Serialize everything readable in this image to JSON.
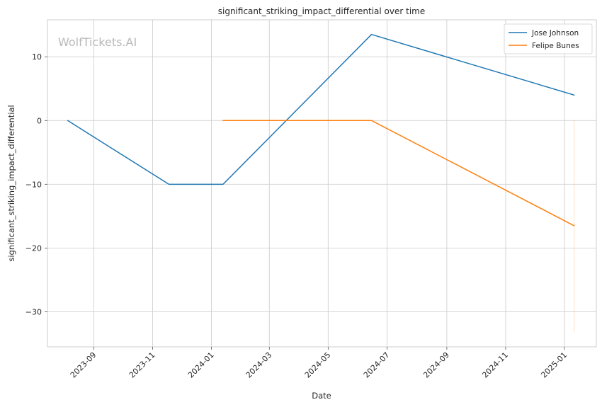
{
  "watermark": "WolfTickets.AI",
  "chart_data": {
    "type": "line",
    "title": "significant_striking_impact_differential over time",
    "xlabel": "Date",
    "ylabel": "significant_striking_impact_differential",
    "x_range": [
      "2023-07-15",
      "2025-02-03"
    ],
    "ylim": [
      -35.5,
      15.8
    ],
    "x_ticks": [
      "2023-09",
      "2023-11",
      "2024-01",
      "2024-03",
      "2024-05",
      "2024-07",
      "2024-09",
      "2024-11",
      "2025-01"
    ],
    "y_ticks": [
      10,
      0,
      -10,
      -20,
      -30
    ],
    "y_tick_labels": [
      "10",
      "0",
      "−10",
      "−20",
      "−30"
    ],
    "grid": true,
    "legend_position": "top-right",
    "series": [
      {
        "name": "Jose Johnson",
        "color": "#1f77b4",
        "x": [
          "2023-08-05",
          "2023-11-18",
          "2024-01-13",
          "2024-06-15",
          "2025-01-11"
        ],
        "y": [
          0,
          -10,
          -10,
          13.5,
          4
        ]
      },
      {
        "name": "Felipe Bunes",
        "color": "#ff7f0e",
        "x": [
          "2024-01-13",
          "2024-06-15",
          "2025-01-11"
        ],
        "y": [
          0,
          0,
          -16.5
        ]
      }
    ],
    "faint_segment": {
      "color": "#ff7f0e",
      "x": "2025-01-11",
      "y": [
        0,
        -33.3
      ]
    }
  }
}
